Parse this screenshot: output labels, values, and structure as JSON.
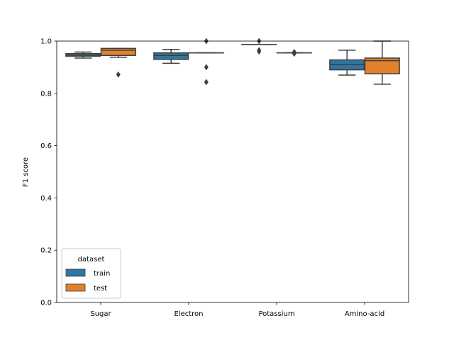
{
  "chart_data": {
    "type": "box",
    "categories": [
      "Sugar",
      "Electron",
      "Potassium",
      "Amino-acid"
    ],
    "ylabel": "F1 score",
    "xlabel": "",
    "ylim": [
      0,
      1.0
    ],
    "yticks": [
      "0.0",
      "0.2",
      "0.4",
      "0.6",
      "0.8",
      "1.0"
    ],
    "legend": {
      "title": "dataset",
      "position": "lower-left"
    },
    "grid": false,
    "series": [
      {
        "name": "train",
        "color": "#3274a1",
        "boxes": [
          {
            "whisker_low": 0.935,
            "q1": 0.942,
            "median": 0.946,
            "q3": 0.952,
            "whisker_high": 0.958,
            "outliers": []
          },
          {
            "whisker_low": 0.915,
            "q1": 0.93,
            "median": 0.945,
            "q3": 0.955,
            "whisker_high": 0.968,
            "outliers": []
          },
          {
            "whisker_low": 0.987,
            "q1": 0.987,
            "median": 0.987,
            "q3": 0.987,
            "whisker_high": 0.987,
            "outliers": [
              1.0,
              0.965,
              0.96
            ]
          },
          {
            "whisker_low": 0.87,
            "q1": 0.89,
            "median": 0.91,
            "q3": 0.928,
            "whisker_high": 0.965,
            "outliers": []
          }
        ]
      },
      {
        "name": "test",
        "color": "#e1812c",
        "boxes": [
          {
            "whisker_low": 0.938,
            "q1": 0.945,
            "median": 0.965,
            "q3": 0.972,
            "whisker_high": 0.972,
            "outliers": [
              0.872
            ]
          },
          {
            "whisker_low": 0.955,
            "q1": 0.955,
            "median": 0.955,
            "q3": 0.955,
            "whisker_high": 0.955,
            "outliers": [
              1.0,
              0.9,
              0.843
            ]
          },
          {
            "whisker_low": 0.955,
            "q1": 0.955,
            "median": 0.955,
            "q3": 0.955,
            "whisker_high": 0.955,
            "outliers": [
              0.958,
              0.952
            ]
          },
          {
            "whisker_low": 0.835,
            "q1": 0.875,
            "median": 0.925,
            "q3": 0.935,
            "whisker_high": 1.0,
            "outliers": []
          }
        ]
      }
    ]
  }
}
